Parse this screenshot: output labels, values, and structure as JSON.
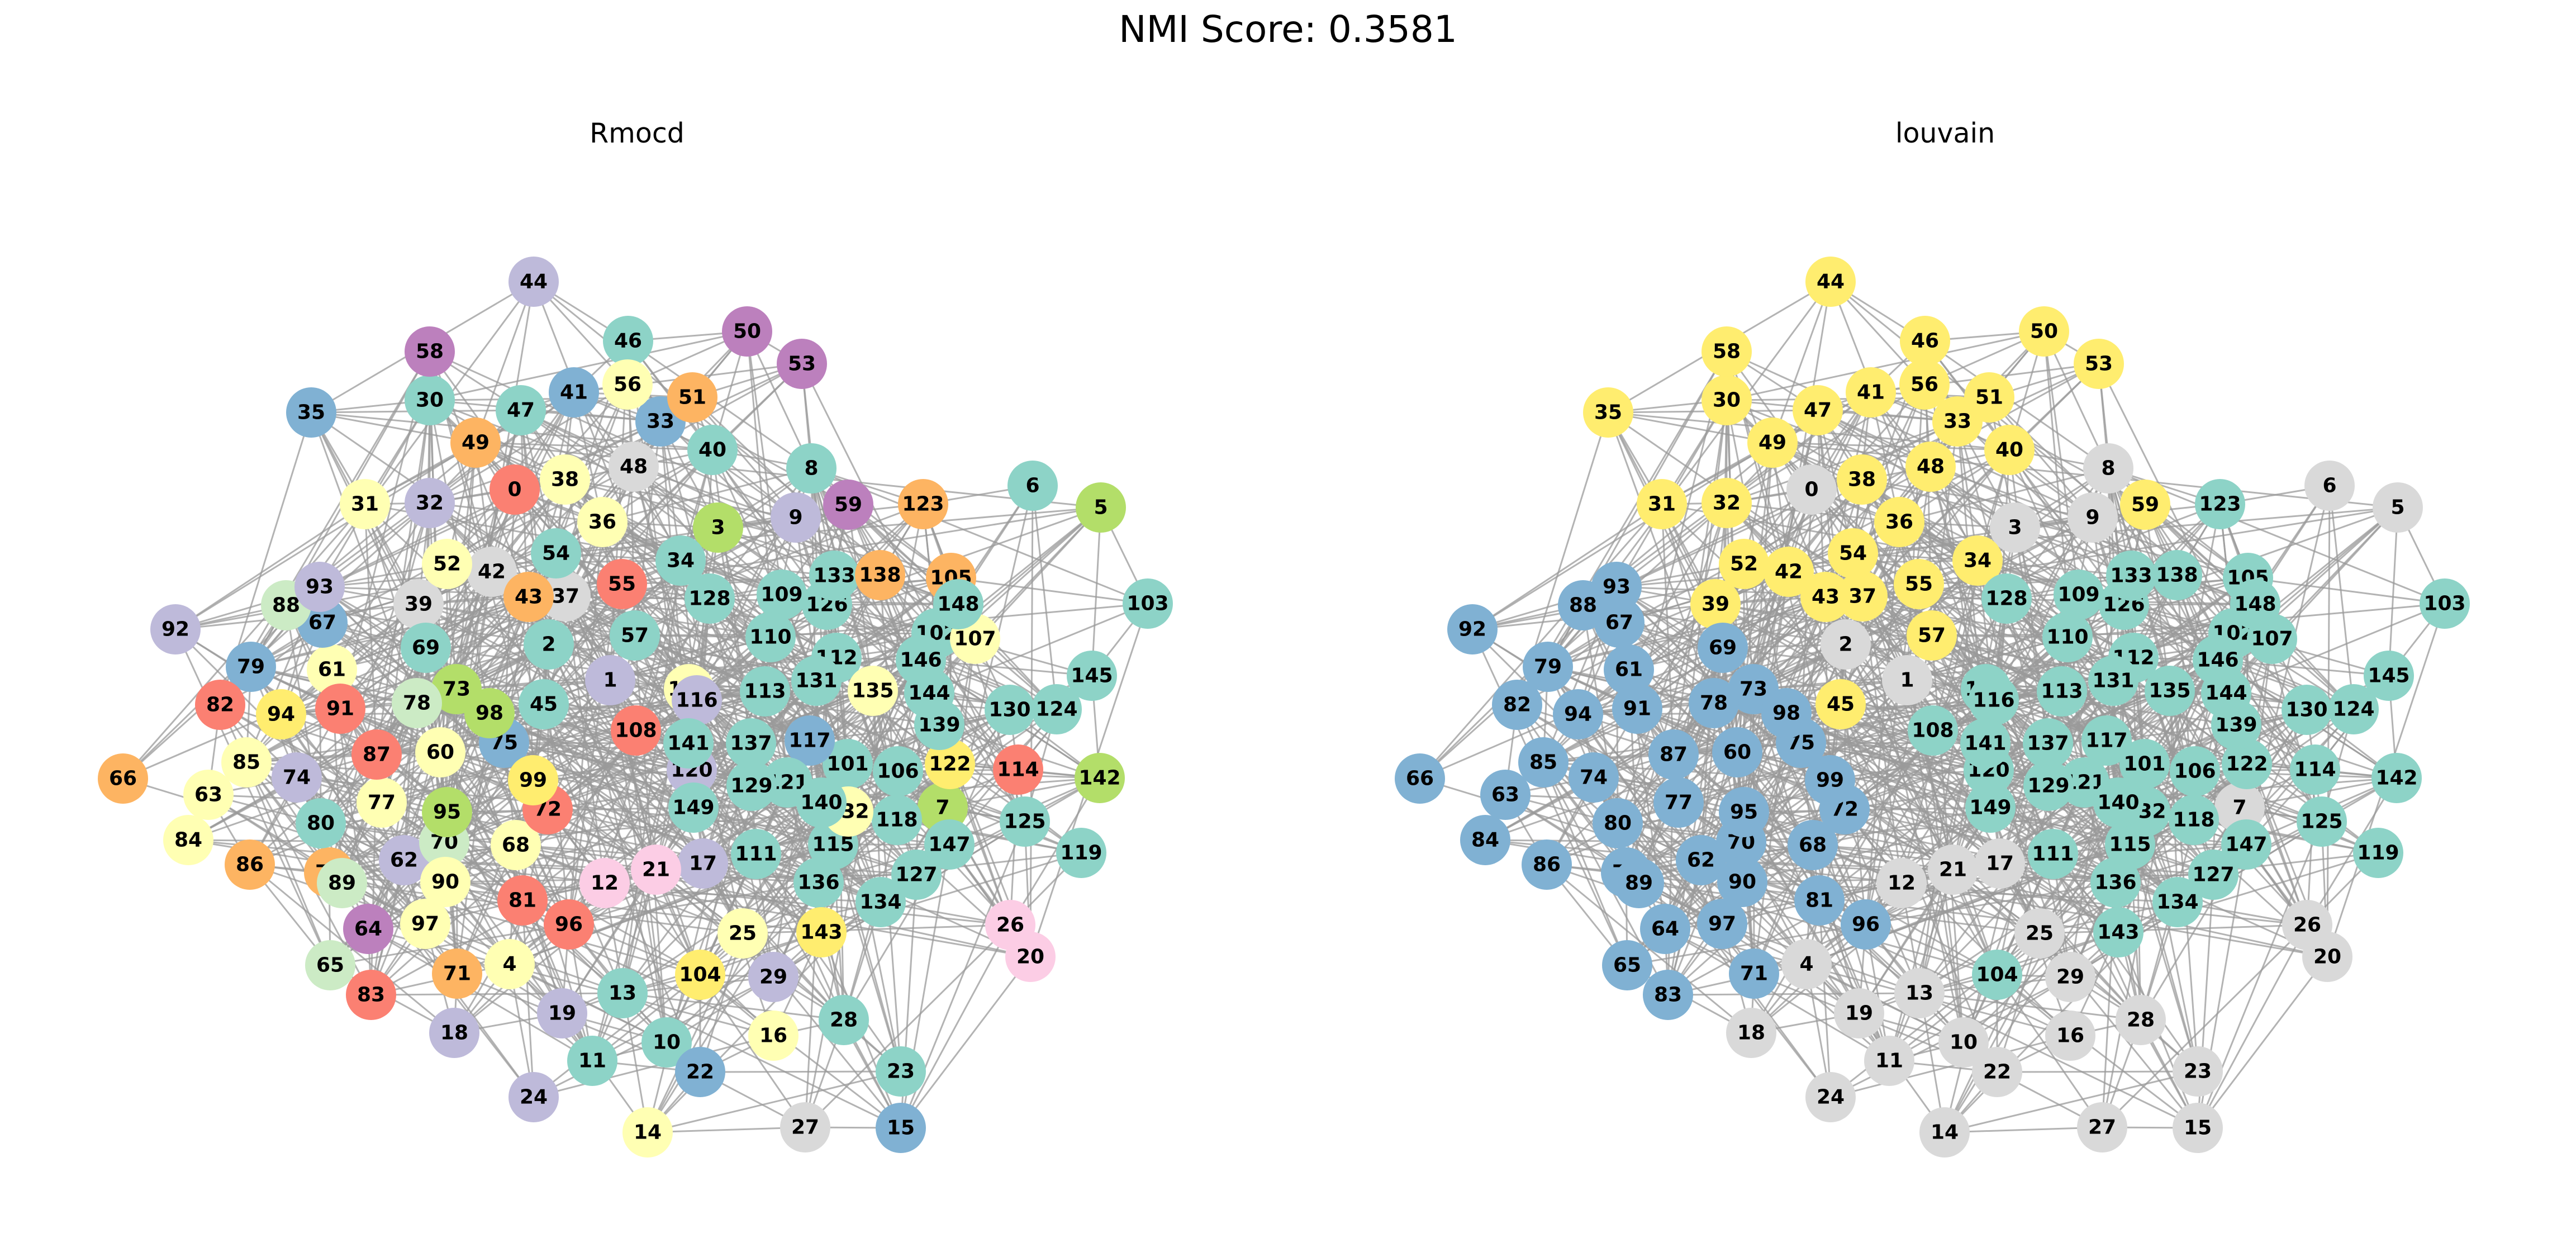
{
  "title": "NMI Score: 0.3581",
  "panels": [
    {
      "title": "Rmocd",
      "node_count": 150
    },
    {
      "title": "louvain",
      "node_count": 150
    }
  ],
  "colors": {
    "edge": "#9a9a9a",
    "palette": {
      "teal": "#8dd3c7",
      "lightyellow": "#ffffb3",
      "lavender": "#bebada",
      "salmon": "#fb8072",
      "blue": "#80b1d3",
      "orange": "#fdb462",
      "green": "#b3de69",
      "pink": "#fccde5",
      "grey": "#d9d9d9",
      "purple": "#bc80bd",
      "mint": "#ccebc5",
      "yellow": "#ffed6f"
    }
  }
}
